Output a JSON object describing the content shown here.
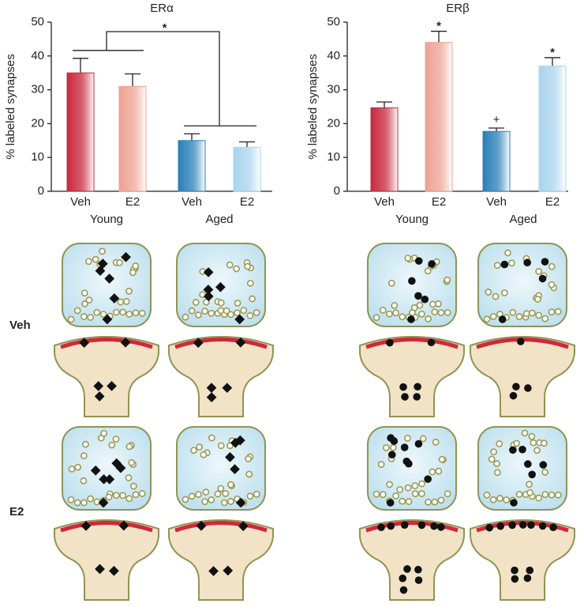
{
  "chart_data": [
    {
      "type": "bar",
      "title": "ERα",
      "y_label": "% labeled synapses",
      "categories": [
        "Veh",
        "E2",
        "Veh",
        "E2"
      ],
      "groups": [
        "Young",
        "Aged"
      ],
      "values": [
        35,
        31,
        15,
        13
      ],
      "errors": [
        4.3,
        3.7,
        2,
        1.6
      ],
      "colors": [
        "#c8283c",
        "#eea293",
        "#2a7fb8",
        "#a9d4ee"
      ],
      "ylim": [
        0,
        50
      ],
      "yticks": [
        0,
        10,
        20,
        30,
        40,
        50
      ],
      "annotations": [
        "*"
      ]
    },
    {
      "type": "bar",
      "title": "ERβ",
      "y_label": "% labeled synapses",
      "categories": [
        "Veh",
        "E2",
        "Veh",
        "E2"
      ],
      "groups": [
        "Young",
        "Aged"
      ],
      "values": [
        24.7,
        44,
        17.7,
        37
      ],
      "errors": [
        1.7,
        3.3,
        1,
        2.5
      ],
      "colors": [
        "#c8283c",
        "#eea293",
        "#2a7fb8",
        "#a9d4ee"
      ],
      "ylim": [
        0,
        50
      ],
      "yticks": [
        0,
        10,
        20,
        30,
        40,
        50
      ],
      "annotations": [
        "*",
        "+",
        "*"
      ]
    }
  ],
  "diagram": {
    "row_labels": [
      "Veh",
      "E2"
    ]
  }
}
